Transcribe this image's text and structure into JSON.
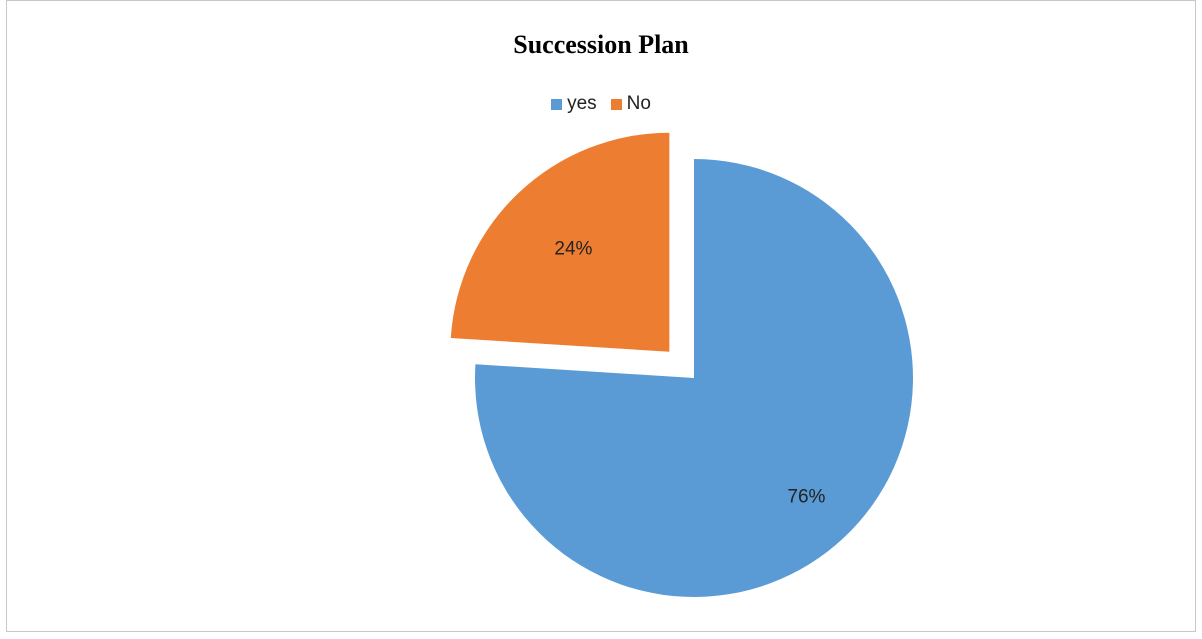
{
  "chart_data": {
    "type": "pie",
    "title": "Succession Plan",
    "legend_position": "top",
    "slices": [
      {
        "name": "yes",
        "value": 76,
        "label": "76%",
        "color": "#5b9bd5",
        "exploded": false
      },
      {
        "name": "No",
        "value": 24,
        "label": "24%",
        "color": "#ed7d31",
        "exploded": true
      }
    ]
  }
}
